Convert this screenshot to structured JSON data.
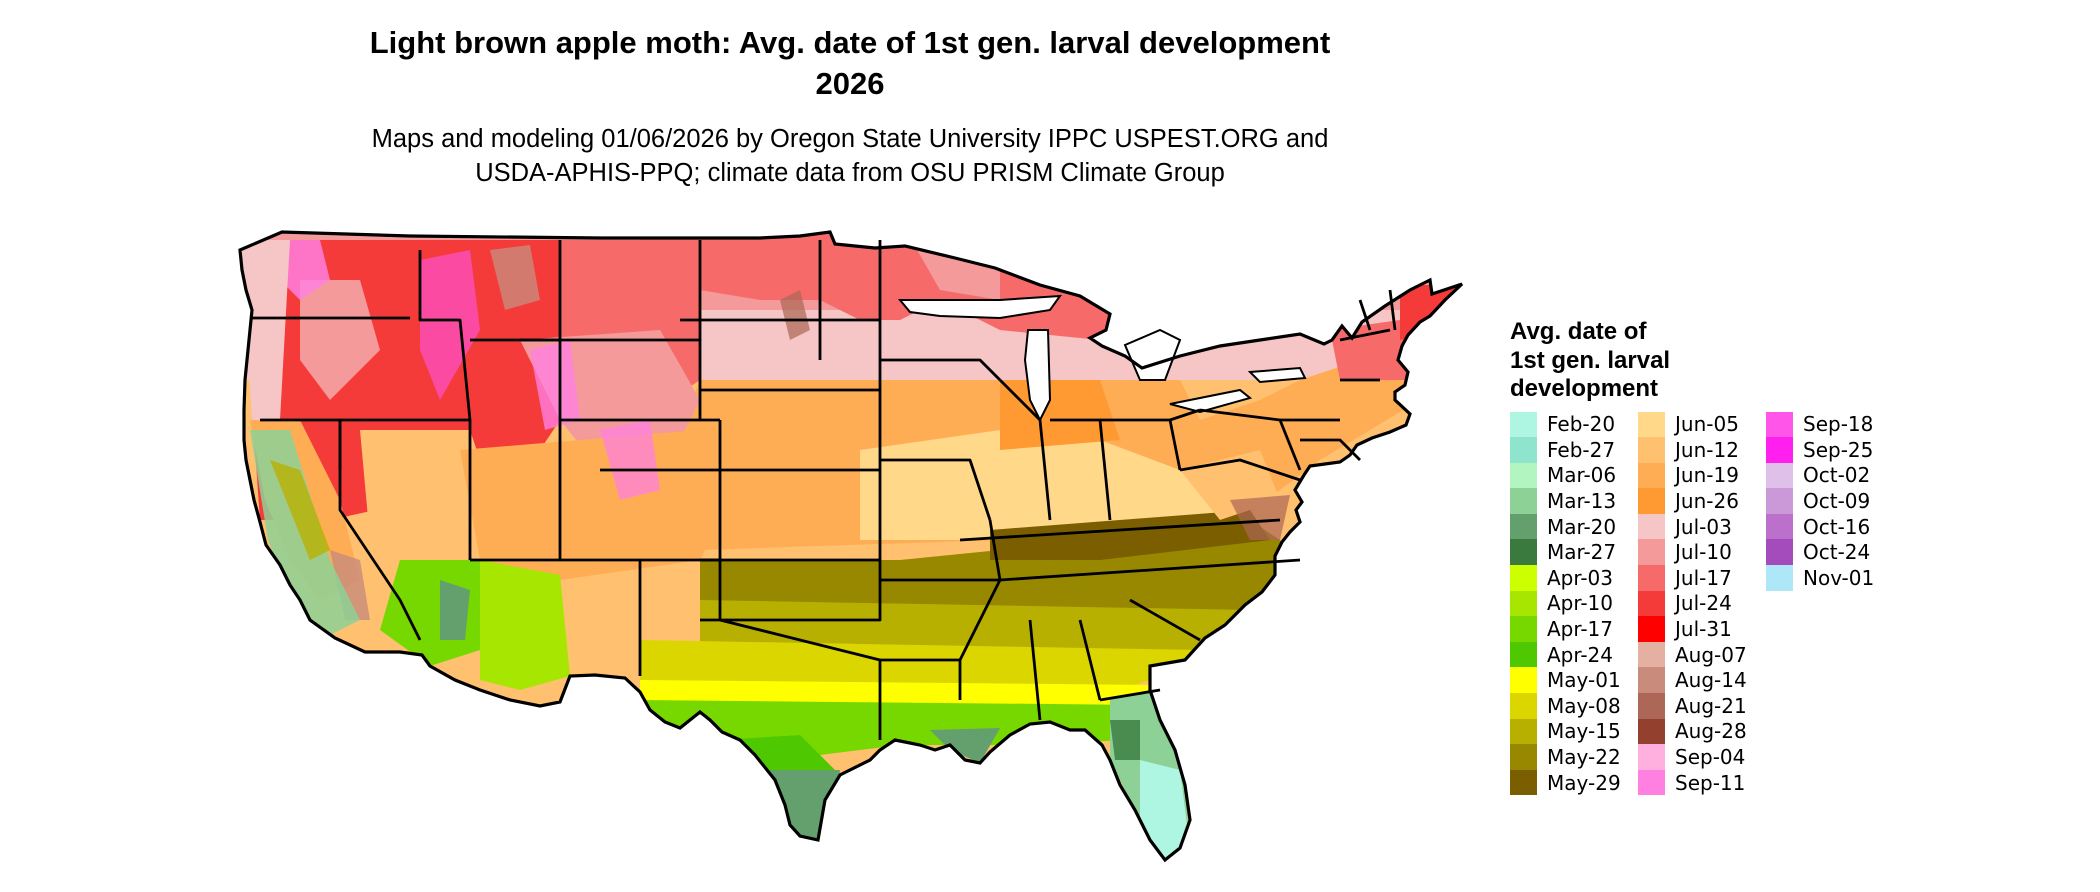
{
  "title_line1": "Light brown apple moth: Avg. date of 1st gen. larval development",
  "title_line2": "2026",
  "subtitle_line1": "Maps and modeling 01/06/2026 by Oregon State University IPPC USPEST.ORG and",
  "subtitle_line2": "USDA-APHIS-PPQ; climate data from OSU PRISM Climate Group",
  "legend": {
    "title": "Avg. date of\n1st gen. larval\ndevelopment",
    "columns": [
      [
        {
          "label": "Feb-20",
          "color": "#aef5e2"
        },
        {
          "label": "Feb-27",
          "color": "#8ee4cc"
        },
        {
          "label": "Mar-06",
          "color": "#b3f5c0"
        },
        {
          "label": "Mar-13",
          "color": "#8dd197"
        },
        {
          "label": "Mar-20",
          "color": "#64a06e"
        },
        {
          "label": "Mar-27",
          "color": "#3a7a3e"
        },
        {
          "label": "Apr-03",
          "color": "#ccff00"
        },
        {
          "label": "Apr-10",
          "color": "#a6e600"
        },
        {
          "label": "Apr-17",
          "color": "#77d800"
        },
        {
          "label": "Apr-24",
          "color": "#4ec800"
        },
        {
          "label": "May-01",
          "color": "#ffff00"
        },
        {
          "label": "May-08",
          "color": "#dcd600"
        },
        {
          "label": "May-15",
          "color": "#b8b000"
        },
        {
          "label": "May-22",
          "color": "#978800"
        },
        {
          "label": "May-29",
          "color": "#7a5e00"
        }
      ],
      [
        {
          "label": "Jun-05",
          "color": "#ffd889"
        },
        {
          "label": "Jun-12",
          "color": "#ffc070"
        },
        {
          "label": "Jun-19",
          "color": "#ffad55"
        },
        {
          "label": "Jun-26",
          "color": "#ff9a33"
        },
        {
          "label": "Jul-03",
          "color": "#f6c5c5"
        },
        {
          "label": "Jul-10",
          "color": "#f59a9a"
        },
        {
          "label": "Jul-17",
          "color": "#f66a6a"
        },
        {
          "label": "Jul-24",
          "color": "#f53a3a"
        },
        {
          "label": "Jul-31",
          "color": "#ff0000"
        },
        {
          "label": "Aug-07",
          "color": "#e4b0a2"
        },
        {
          "label": "Aug-14",
          "color": "#c98b7c"
        },
        {
          "label": "Aug-21",
          "color": "#ad6756"
        },
        {
          "label": "Aug-28",
          "color": "#94402e"
        },
        {
          "label": "Sep-04",
          "color": "#ffb0de"
        },
        {
          "label": "Sep-11",
          "color": "#ff80e0"
        }
      ],
      [
        {
          "label": "Sep-18",
          "color": "#ff55e8"
        },
        {
          "label": "Sep-25",
          "color": "#ff20f0"
        },
        {
          "label": "Oct-02",
          "color": "#dfc0e8"
        },
        {
          "label": "Oct-09",
          "color": "#cc99d8"
        },
        {
          "label": "Oct-16",
          "color": "#bb70cc"
        },
        {
          "label": "Oct-24",
          "color": "#a44cbb"
        },
        {
          "label": "Nov-01",
          "color": "#aee8f8"
        }
      ]
    ]
  }
}
